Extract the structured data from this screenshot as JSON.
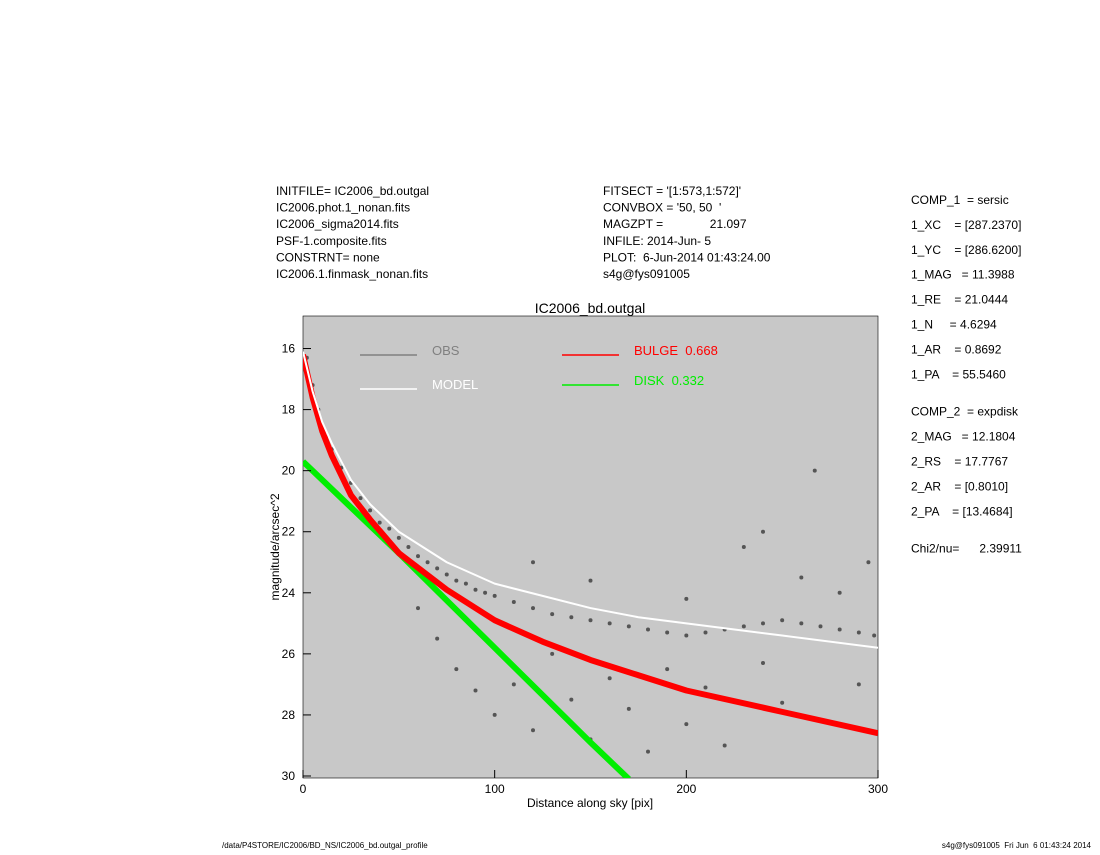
{
  "header": {
    "left": [
      "INITFILE= IC2006_bd.outgal",
      "IC2006.phot.1_nonan.fits",
      "IC2006_sigma2014.fits",
      "PSF-1.composite.fits",
      "CONSTRNT= none",
      "IC2006.1.finmask_nonan.fits"
    ],
    "middle": [
      "FITSECT = '[1:573,1:572]'",
      "CONVBOX = '50, 50  '",
      "MAGZPT =              21.097",
      "INFILE: 2014-Jun- 5",
      "PLOT:  6-Jun-2014 01:43:24.00",
      "s4g@fys091005"
    ]
  },
  "parameters": [
    "COMP_1  = sersic",
    "1_XC    = [287.2370]",
    "1_YC    = [286.6200]",
    "1_MAG   = 11.3988",
    "1_RE    = 21.0444",
    "1_N     = 4.6294",
    "1_AR    = 0.8692",
    "1_PA    = 55.5460",
    "COMP_2  = expdisk",
    "2_MAG   = 12.1804",
    "2_RS    = 17.7767",
    "2_AR    = [0.8010]",
    "2_PA    = [13.4684]",
    "Chi2/nu=      2.39911"
  ],
  "footer": {
    "left": "/data/P4STORE/IC2006/BD_NS/IC2006_bd.outgal_profile",
    "right": "s4g@fys091005  Fri Jun  6 01:43:24 2014"
  },
  "chart_data": {
    "type": "scatter",
    "title": "IC2006_bd.outgal",
    "x_label": "Distance along sky [pix]",
    "y_label": "magnitude/arcsec^2",
    "xlim": [
      0,
      300
    ],
    "xticks": [
      0,
      100,
      200,
      300
    ],
    "ylim": [
      30,
      15
    ],
    "yticks": [
      16,
      18,
      20,
      22,
      24,
      26,
      28,
      30
    ],
    "background": "#c8c8c8",
    "series": [
      {
        "name": "OBS",
        "color": "#555555",
        "legend_color": "#808080",
        "style": "points",
        "x": [
          2,
          5,
          8,
          12,
          15,
          20,
          25,
          30,
          35,
          40,
          45,
          50,
          55,
          60,
          65,
          70,
          75,
          80,
          85,
          90,
          95,
          100,
          110,
          120,
          130,
          140,
          150,
          160,
          170,
          180,
          190,
          200,
          210,
          220,
          230,
          240,
          250,
          260,
          270,
          280,
          290,
          298,
          60,
          70,
          80,
          90,
          100,
          110,
          120,
          130,
          140,
          150,
          160,
          170,
          180,
          190,
          200,
          210,
          220,
          230,
          240,
          250,
          260,
          270,
          280,
          290,
          295,
          267,
          240,
          120,
          150,
          200
        ],
        "values": [
          16.3,
          17.2,
          18.0,
          18.9,
          19.3,
          19.9,
          20.4,
          20.9,
          21.3,
          21.7,
          21.9,
          22.2,
          22.5,
          22.8,
          23.0,
          23.2,
          23.4,
          23.6,
          23.7,
          23.9,
          24.0,
          24.1,
          24.3,
          24.5,
          24.7,
          24.8,
          24.9,
          25.0,
          25.1,
          25.2,
          25.3,
          25.4,
          25.3,
          25.2,
          25.1,
          25.0,
          24.9,
          25.0,
          25.1,
          25.2,
          25.3,
          25.4,
          24.5,
          25.5,
          26.5,
          27.2,
          28.0,
          27.0,
          28.5,
          26.0,
          27.5,
          28.8,
          26.8,
          27.8,
          29.2,
          26.5,
          28.3,
          27.1,
          29.0,
          22.5,
          26.3,
          27.6,
          23.5,
          28.2,
          24.0,
          27.0,
          23.0,
          20.0,
          22.0,
          23.0,
          23.6,
          24.2
        ]
      },
      {
        "name": "MODEL",
        "color": "#ffffff",
        "style": "line",
        "x": [
          0,
          5,
          10,
          15,
          25,
          35,
          50,
          75,
          100,
          125,
          150,
          175,
          200,
          250,
          300
        ],
        "values": [
          16.1,
          17.4,
          18.4,
          19.1,
          20.3,
          21.1,
          22.0,
          23.0,
          23.7,
          24.1,
          24.5,
          24.8,
          25.0,
          25.4,
          25.8
        ]
      },
      {
        "name": "BULGE  0.668",
        "color": "#ff0000",
        "style": "line",
        "x": [
          0,
          5,
          10,
          15,
          25,
          35,
          50,
          75,
          100,
          125,
          150,
          175,
          200,
          250,
          300
        ],
        "values": [
          16.2,
          17.6,
          18.7,
          19.5,
          20.8,
          21.6,
          22.7,
          23.9,
          24.9,
          25.6,
          26.2,
          26.7,
          27.2,
          27.9,
          28.6
        ]
      },
      {
        "name": "DISK  0.332",
        "color": "#00ee00",
        "style": "line",
        "x": [
          0,
          50,
          100,
          150,
          170
        ],
        "values": [
          19.7,
          22.7,
          25.8,
          28.9,
          30.1
        ]
      }
    ]
  }
}
